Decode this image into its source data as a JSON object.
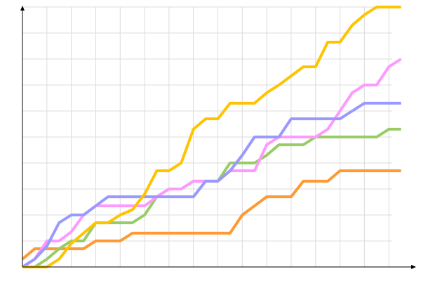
{
  "chart_data": {
    "type": "line",
    "x": [
      0,
      1,
      2,
      3,
      4,
      5,
      6,
      7,
      8,
      9,
      10,
      11,
      12,
      13,
      14,
      15,
      16,
      17,
      18,
      19,
      20,
      21,
      22,
      23,
      24,
      25,
      26,
      27,
      28,
      29,
      30,
      31
    ],
    "xlim": [
      0,
      32
    ],
    "xticks": [
      0,
      2,
      4,
      6,
      8,
      10,
      12,
      14,
      16,
      18,
      20,
      22,
      24,
      26,
      28,
      30
    ],
    "ylim": [
      0,
      10
    ],
    "yticks": [
      0,
      1,
      2,
      3,
      4,
      5,
      6,
      7,
      8,
      9,
      10
    ],
    "grid": true,
    "series": [
      {
        "color": "#ff9933",
        "values": [
          0.3,
          0.7,
          0.7,
          0.7,
          0.7,
          0.7,
          1.0,
          1.0,
          1.0,
          1.3,
          1.3,
          1.3,
          1.3,
          1.3,
          1.3,
          1.3,
          1.3,
          1.3,
          2.0,
          2.35,
          2.7,
          2.7,
          2.7,
          3.3,
          3.3,
          3.3,
          3.7,
          3.7,
          3.7,
          3.7,
          3.7,
          3.7
        ]
      },
      {
        "color": "#99cc66",
        "values": [
          0,
          0,
          0.3,
          0.7,
          1.0,
          1.0,
          1.7,
          1.7,
          1.7,
          1.7,
          2.0,
          2.7,
          3.0,
          3.0,
          3.3,
          3.3,
          3.3,
          4.0,
          4.0,
          4.0,
          4.3,
          4.7,
          4.7,
          4.7,
          5.0,
          5.0,
          5.0,
          5.0,
          5.0,
          5.0,
          5.3,
          5.3
        ]
      },
      {
        "color": "#ff99ff",
        "values": [
          0,
          0.3,
          1.0,
          1.0,
          1.35,
          2.0,
          2.35,
          2.35,
          2.35,
          2.35,
          2.35,
          2.7,
          3.0,
          3.0,
          3.3,
          3.3,
          3.3,
          3.7,
          3.7,
          3.7,
          4.7,
          5.0,
          5.0,
          5.0,
          5.0,
          5.3,
          6.0,
          6.7,
          7.0,
          7.0,
          7.7,
          8.0
        ]
      },
      {
        "color": "#9999ff",
        "values": [
          0,
          0.3,
          0.8,
          1.7,
          2.0,
          2.0,
          2.35,
          2.7,
          2.7,
          2.7,
          2.7,
          2.7,
          2.7,
          2.7,
          2.7,
          3.3,
          3.3,
          3.7,
          4.3,
          5.0,
          5.0,
          5.0,
          5.7,
          5.7,
          5.7,
          5.7,
          5.7,
          6.0,
          6.3,
          6.3,
          6.3,
          6.3
        ]
      },
      {
        "color": "#ffc400",
        "values": [
          0,
          0,
          0,
          0.3,
          0.9,
          1.3,
          1.7,
          1.7,
          2.0,
          2.2,
          2.8,
          3.7,
          3.7,
          4.0,
          5.3,
          5.7,
          5.7,
          6.3,
          6.3,
          6.3,
          6.7,
          7.0,
          7.35,
          7.7,
          7.7,
          8.65,
          8.65,
          9.3,
          9.7,
          10,
          10,
          10
        ]
      }
    ]
  }
}
